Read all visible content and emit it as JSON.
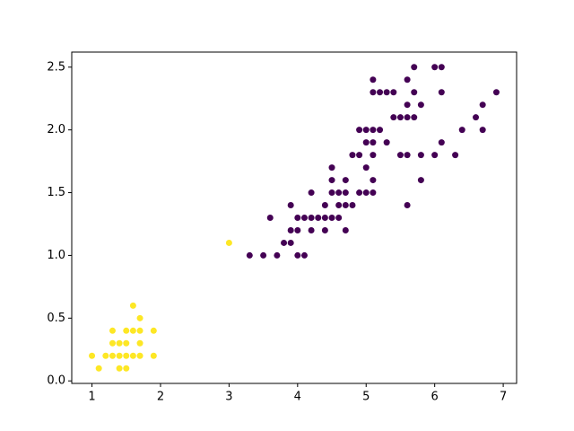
{
  "chart_data": {
    "type": "scatter",
    "xlim": [
      0.705,
      7.195
    ],
    "ylim": [
      -0.02,
      2.62
    ],
    "xticks": [
      1,
      2,
      3,
      4,
      5,
      6,
      7
    ],
    "yticks": [
      {
        "value": 0,
        "label": "0.0"
      },
      {
        "value": 0.5,
        "label": "0.5"
      },
      {
        "value": 1,
        "label": "1.0"
      },
      {
        "value": 1.5,
        "label": "1.5"
      },
      {
        "value": 2,
        "label": "2.0"
      },
      {
        "value": 2.5,
        "label": "2.5"
      }
    ],
    "series": [
      {
        "color": "#fde725",
        "x": [
          1.0,
          1.1,
          1.2,
          1.3,
          1.3,
          1.3,
          1.4,
          1.4,
          1.4,
          1.5,
          1.5,
          1.5,
          1.5,
          1.6,
          1.6,
          1.6,
          1.7,
          1.7,
          1.7,
          1.7,
          1.9,
          1.9,
          3.0
        ],
        "y": [
          0.2,
          0.1,
          0.2,
          0.2,
          0.3,
          0.4,
          0.1,
          0.2,
          0.3,
          0.1,
          0.2,
          0.3,
          0.4,
          0.2,
          0.4,
          0.6,
          0.2,
          0.3,
          0.4,
          0.5,
          0.2,
          0.4,
          1.1
        ]
      },
      {
        "color": "#440154",
        "x": [
          3.3,
          3.5,
          3.7,
          4.0,
          4.1,
          3.8,
          3.9,
          3.9,
          4.0,
          4.2,
          4.4,
          4.7,
          3.6,
          4.0,
          4.1,
          4.2,
          4.3,
          4.4,
          4.5,
          4.6,
          3.9,
          4.4,
          4.6,
          4.7,
          4.8,
          5.6,
          4.2,
          4.5,
          4.6,
          4.7,
          4.9,
          5.0,
          5.1,
          4.5,
          4.7,
          5.1,
          5.8,
          4.5,
          5.0,
          4.8,
          4.9,
          5.1,
          5.5,
          5.6,
          5.8,
          6.0,
          6.3,
          5.0,
          5.1,
          5.3,
          6.1,
          4.9,
          5.0,
          5.1,
          5.2,
          6.4,
          6.7,
          5.4,
          5.5,
          5.6,
          5.7,
          6.6,
          5.6,
          5.8,
          6.7,
          5.1,
          5.2,
          5.3,
          5.4,
          5.7,
          6.1,
          6.9,
          5.1,
          5.6,
          5.7,
          6.0,
          6.1
        ],
        "y": [
          1.0,
          1.0,
          1.0,
          1.0,
          1.0,
          1.1,
          1.1,
          1.2,
          1.2,
          1.2,
          1.2,
          1.2,
          1.3,
          1.3,
          1.3,
          1.3,
          1.3,
          1.3,
          1.3,
          1.3,
          1.4,
          1.4,
          1.4,
          1.4,
          1.4,
          1.4,
          1.5,
          1.5,
          1.5,
          1.5,
          1.5,
          1.5,
          1.5,
          1.6,
          1.6,
          1.6,
          1.6,
          1.7,
          1.7,
          1.8,
          1.8,
          1.8,
          1.8,
          1.8,
          1.8,
          1.8,
          1.8,
          1.9,
          1.9,
          1.9,
          1.9,
          2.0,
          2.0,
          2.0,
          2.0,
          2.0,
          2.0,
          2.1,
          2.1,
          2.1,
          2.1,
          2.1,
          2.2,
          2.2,
          2.2,
          2.3,
          2.3,
          2.3,
          2.3,
          2.3,
          2.3,
          2.3,
          2.4,
          2.4,
          2.5,
          2.5,
          2.5
        ]
      }
    ]
  }
}
